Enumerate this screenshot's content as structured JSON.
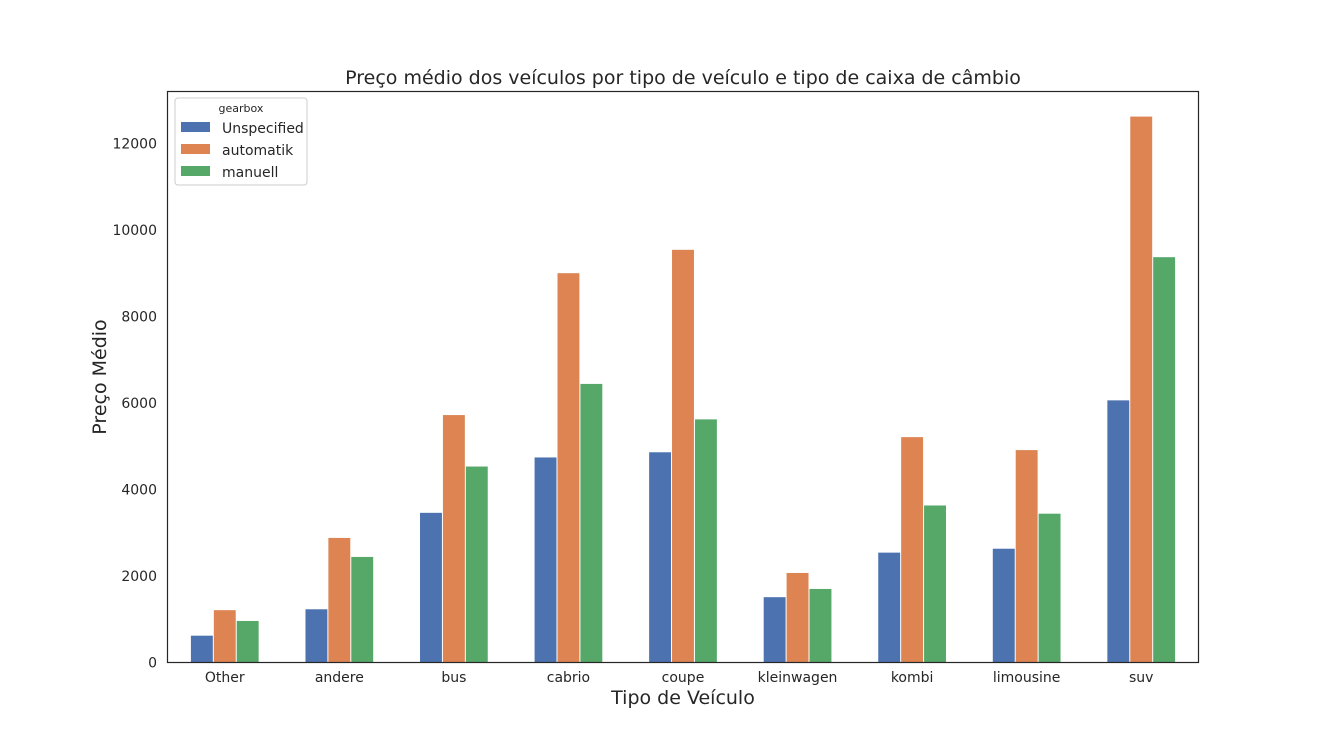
{
  "chart_data": {
    "type": "bar",
    "title": "Preço médio dos veículos por tipo de veículo e tipo de caixa de câmbio",
    "xlabel": "Tipo de Veículo",
    "ylabel": "Preço Médio",
    "ylim": [
      0,
      13200
    ],
    "yticks": [
      0,
      2000,
      4000,
      6000,
      8000,
      10000,
      12000
    ],
    "grid": false,
    "legend": {
      "title": "gearbox",
      "position": "top-left"
    },
    "categories": [
      "Other",
      "andere",
      "bus",
      "cabrio",
      "coupe",
      "kleinwagen",
      "kombi",
      "limousine",
      "suv"
    ],
    "series": [
      {
        "name": "Unspecified",
        "color": "#4c72b0",
        "values": [
          620,
          1230,
          3460,
          4740,
          4860,
          1510,
          2540,
          2630,
          6060
        ]
      },
      {
        "name": "automatik",
        "color": "#dd8452",
        "values": [
          1210,
          2880,
          5720,
          9000,
          9540,
          2070,
          5210,
          4910,
          12620
        ]
      },
      {
        "name": "manuell",
        "color": "#55a868",
        "values": [
          960,
          2440,
          4530,
          6440,
          5620,
          1700,
          3630,
          3440,
          9370
        ]
      }
    ]
  }
}
